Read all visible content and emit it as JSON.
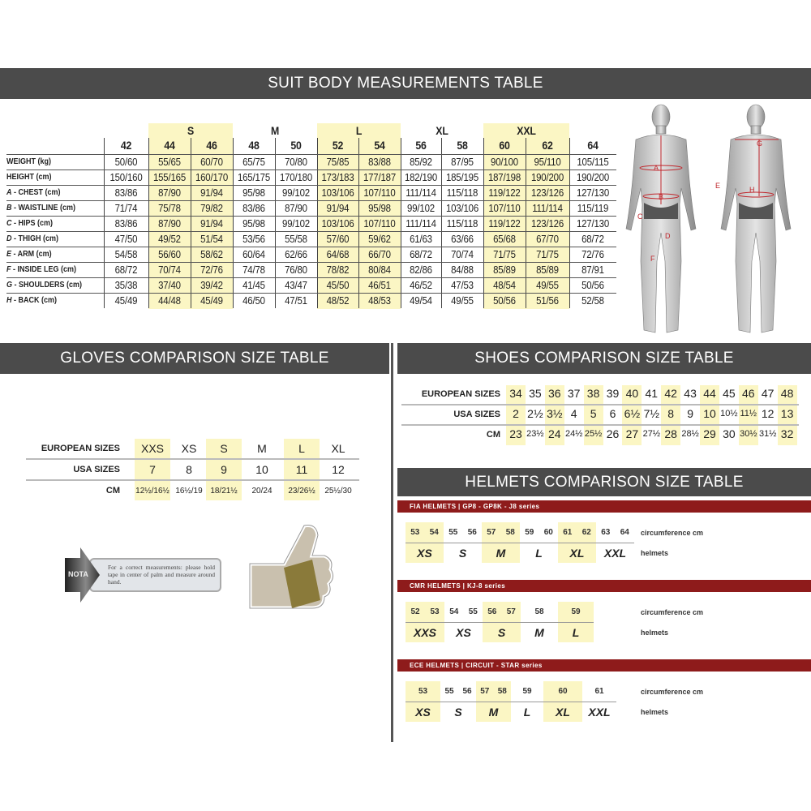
{
  "suit": {
    "title": "SUIT BODY MEASUREMENTS TABLE",
    "groups": [
      {
        "label": "S",
        "cols": [
          1,
          2
        ]
      },
      {
        "label": "M",
        "cols": [
          3,
          4
        ]
      },
      {
        "label": "L",
        "cols": [
          5,
          6
        ]
      },
      {
        "label": "XL",
        "cols": [
          7,
          8
        ]
      },
      {
        "label": "XXL",
        "cols": [
          9,
          10
        ]
      }
    ],
    "sizes": [
      "42",
      "44",
      "46",
      "48",
      "50",
      "52",
      "54",
      "56",
      "58",
      "60",
      "62",
      "64"
    ],
    "highlight_color": "#fbf6c4",
    "rows": [
      {
        "letter": "",
        "label": "WEIGHT (kg)",
        "values": [
          "50/60",
          "55/65",
          "60/70",
          "65/75",
          "70/80",
          "75/85",
          "83/88",
          "85/92",
          "87/95",
          "90/100",
          "95/110",
          "105/115"
        ]
      },
      {
        "letter": "",
        "label": "HEIGHT (cm)",
        "values": [
          "150/160",
          "155/165",
          "160/170",
          "165/175",
          "170/180",
          "173/183",
          "177/187",
          "182/190",
          "185/195",
          "187/198",
          "190/200",
          "190/200"
        ]
      },
      {
        "letter": "A",
        "label": " - CHEST (cm)",
        "values": [
          "83/86",
          "87/90",
          "91/94",
          "95/98",
          "99/102",
          "103/106",
          "107/110",
          "111/114",
          "115/118",
          "119/122",
          "123/126",
          "127/130"
        ]
      },
      {
        "letter": "B",
        "label": " - WAISTLINE (cm)",
        "values": [
          "71/74",
          "75/78",
          "79/82",
          "83/86",
          "87/90",
          "91/94",
          "95/98",
          "99/102",
          "103/106",
          "107/110",
          "111/114",
          "115/119"
        ]
      },
      {
        "letter": "C",
        "label": " - HIPS (cm)",
        "values": [
          "83/86",
          "87/90",
          "91/94",
          "95/98",
          "99/102",
          "103/106",
          "107/110",
          "111/114",
          "115/118",
          "119/122",
          "123/126",
          "127/130"
        ]
      },
      {
        "letter": "D",
        "label": " - THIGH (cm)",
        "values": [
          "47/50",
          "49/52",
          "51/54",
          "53/56",
          "55/58",
          "57/60",
          "59/62",
          "61/63",
          "63/66",
          "65/68",
          "67/70",
          "68/72"
        ]
      },
      {
        "letter": "E",
        "label": " - ARM (cm)",
        "values": [
          "54/58",
          "56/60",
          "58/62",
          "60/64",
          "62/66",
          "64/68",
          "66/70",
          "68/72",
          "70/74",
          "71/75",
          "71/75",
          "72/76"
        ]
      },
      {
        "letter": "F",
        "label": " - INSIDE LEG (cm)",
        "values": [
          "68/72",
          "70/74",
          "72/76",
          "74/78",
          "76/80",
          "78/82",
          "80/84",
          "82/86",
          "84/88",
          "85/89",
          "85/89",
          "87/91"
        ]
      },
      {
        "letter": "G",
        "label": " - SHOULDERS (cm)",
        "values": [
          "35/38",
          "37/40",
          "39/42",
          "41/45",
          "43/47",
          "45/50",
          "46/51",
          "46/52",
          "47/53",
          "48/54",
          "49/55",
          "50/56"
        ]
      },
      {
        "letter": "H",
        "label": " - BACK (cm)",
        "values": [
          "45/49",
          "44/48",
          "45/49",
          "46/50",
          "47/51",
          "48/52",
          "48/53",
          "49/54",
          "49/55",
          "50/56",
          "51/56",
          "52/58"
        ]
      }
    ],
    "figure_letters": [
      "A",
      "B",
      "C",
      "D",
      "E",
      "F",
      "G",
      "H"
    ],
    "marker_color": "#c0272d"
  },
  "gloves": {
    "title": "GLOVES COMPARISON SIZE TABLE",
    "row_labels": [
      "EUROPEAN SIZES",
      "USA SIZES",
      "CM"
    ],
    "european": [
      "XXS",
      "XS",
      "S",
      "M",
      "L",
      "XL"
    ],
    "usa": [
      "7",
      "8",
      "9",
      "10",
      "11",
      "12"
    ],
    "cm": [
      "12½/16½",
      "16½/19",
      "18/21½",
      "20/24",
      "23/26½",
      "25½/30"
    ],
    "note_tag": "NOTA",
    "note_text": "For a correct measurements: please hold tape in center of palm and measure around hand."
  },
  "shoes": {
    "title": "SHOES COMPARISON SIZE TABLE",
    "row_labels": [
      "EUROPEAN SIZES",
      "USA SIZES",
      "CM"
    ],
    "european": [
      "34",
      "35",
      "36",
      "37",
      "38",
      "39",
      "40",
      "41",
      "42",
      "43",
      "44",
      "45",
      "46",
      "47",
      "48"
    ],
    "usa": [
      "2",
      "2½",
      "3½",
      "4",
      "5",
      "6",
      "6½",
      "7½",
      "8",
      "9",
      "10",
      "10½",
      "11½",
      "12",
      "13"
    ],
    "cm": [
      "23",
      "23½",
      "24",
      "24½",
      "25½",
      "26",
      "27",
      "27½",
      "28",
      "28½",
      "29",
      "30",
      "30½",
      "31½",
      "32"
    ]
  },
  "helmets": {
    "title": "HELMETS COMPARISON SIZE TABLE",
    "bar_color": "#8e1b1b",
    "row_label_circ": "circumference cm",
    "row_label_size": "helmets",
    "sections": [
      {
        "title": "FIA HELMETS | GP8 - GP8K - J8 series",
        "groups": [
          {
            "size": "XS",
            "nums": [
              "53",
              "54"
            ],
            "hl": true
          },
          {
            "size": "S",
            "nums": [
              "55",
              "56"
            ],
            "hl": false
          },
          {
            "size": "M",
            "nums": [
              "57",
              "58"
            ],
            "hl": true
          },
          {
            "size": "L",
            "nums": [
              "59",
              "60"
            ],
            "hl": false
          },
          {
            "size": "XL",
            "nums": [
              "61",
              "62"
            ],
            "hl": true
          },
          {
            "size": "XXL",
            "nums": [
              "63",
              "64"
            ],
            "hl": false
          }
        ]
      },
      {
        "title": "CMR HELMETS | KJ-8 series",
        "groups": [
          {
            "size": "XXS",
            "nums": [
              "52",
              "53"
            ],
            "hl": true
          },
          {
            "size": "XS",
            "nums": [
              "54",
              "55"
            ],
            "hl": false
          },
          {
            "size": "S",
            "nums": [
              "56",
              "57"
            ],
            "hl": true
          },
          {
            "size": "M",
            "nums": [
              "58"
            ],
            "hl": false
          },
          {
            "size": "L",
            "nums": [
              "59"
            ],
            "hl": true
          }
        ]
      },
      {
        "title": "ECE HELMETS | CIRCUIT - STAR series",
        "groups": [
          {
            "size": "XS",
            "nums": [
              "53"
            ],
            "hl": true
          },
          {
            "size": "S",
            "nums": [
              "55",
              "56"
            ],
            "hl": false
          },
          {
            "size": "M",
            "nums": [
              "57",
              "58"
            ],
            "hl": true
          },
          {
            "size": "L",
            "nums": [
              "59"
            ],
            "hl": false
          },
          {
            "size": "XL",
            "nums": [
              "60"
            ],
            "hl": true
          },
          {
            "size": "XXL",
            "nums": [
              "61"
            ],
            "hl": false
          }
        ]
      }
    ]
  }
}
